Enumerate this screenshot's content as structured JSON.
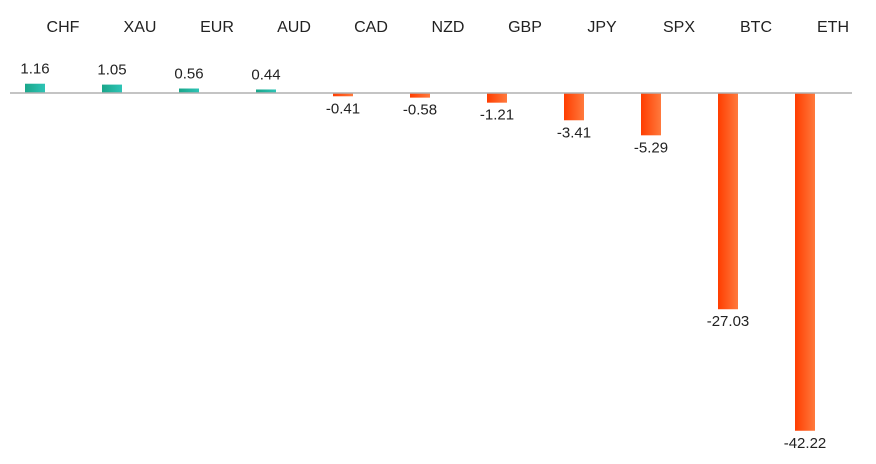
{
  "chart_data": {
    "type": "bar",
    "categories": [
      "CHF",
      "XAU",
      "EUR",
      "AUD",
      "CAD",
      "NZD",
      "GBP",
      "JPY",
      "SPX",
      "BTC",
      "ETH"
    ],
    "values": [
      1.16,
      1.05,
      0.56,
      0.44,
      -0.41,
      -0.58,
      -1.21,
      -3.41,
      -5.29,
      -27.03,
      -42.22
    ],
    "value_labels": [
      "1.16",
      "1.05",
      "0.56",
      "0.44",
      "-0.41",
      "-0.58",
      "-1.21",
      "-3.41",
      "-5.29",
      "-27.03",
      "-42.22"
    ],
    "title": "",
    "xlabel": "",
    "ylabel": "",
    "category_axis_position": "top",
    "grid": false,
    "legend": "none",
    "colors": {
      "positive_start": "#1aa68a",
      "positive_end": "#2ec4b6",
      "negative_start": "#ff3d00",
      "negative_end": "#ff7a3d",
      "baseline": "#b0b0b0"
    }
  }
}
